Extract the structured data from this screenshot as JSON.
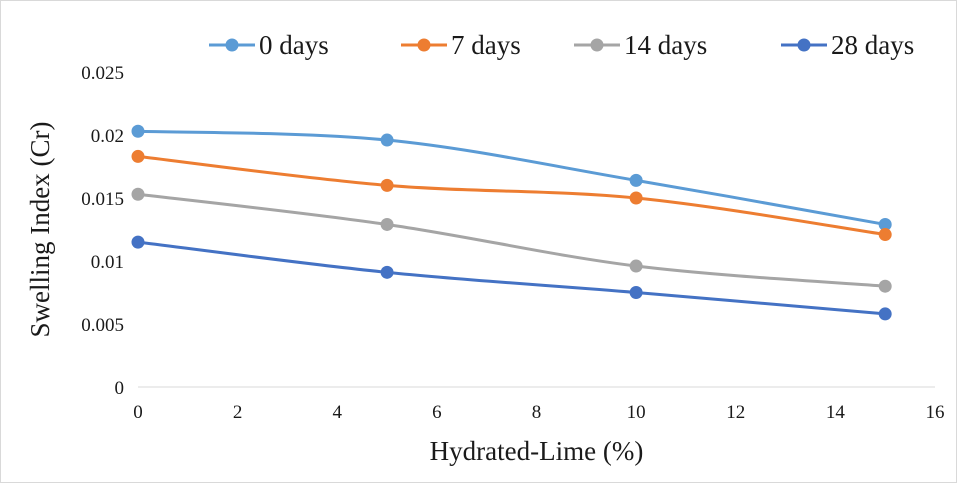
{
  "chart_data": {
    "type": "line",
    "title": "",
    "xlabel": "Hydrated-Lime (%)",
    "ylabel": "Swelling Index (Cr)",
    "xlim": [
      0,
      16
    ],
    "ylim": [
      0,
      0.025
    ],
    "x_ticks": [
      "0",
      "2",
      "4",
      "6",
      "8",
      "10",
      "12",
      "14",
      "16"
    ],
    "y_ticks": [
      "0",
      "0.005",
      "0.01",
      "0.015",
      "0.02",
      "0.025"
    ],
    "grid": false,
    "smooth": true,
    "legend_position": "top",
    "x": [
      0,
      5,
      10,
      15
    ],
    "series": [
      {
        "name": "0 days",
        "color": "#5b9bd5",
        "values": [
          0.0203,
          0.0196,
          0.0164,
          0.0129
        ]
      },
      {
        "name": "7 days",
        "color": "#ed7d31",
        "values": [
          0.0183,
          0.016,
          0.015,
          0.0121
        ]
      },
      {
        "name": "14 days",
        "color": "#a5a5a5",
        "values": [
          0.0153,
          0.0129,
          0.0096,
          0.008
        ]
      },
      {
        "name": "28 days",
        "color": "#4472c4",
        "values": [
          0.0115,
          0.0091,
          0.0075,
          0.0058
        ]
      }
    ]
  }
}
